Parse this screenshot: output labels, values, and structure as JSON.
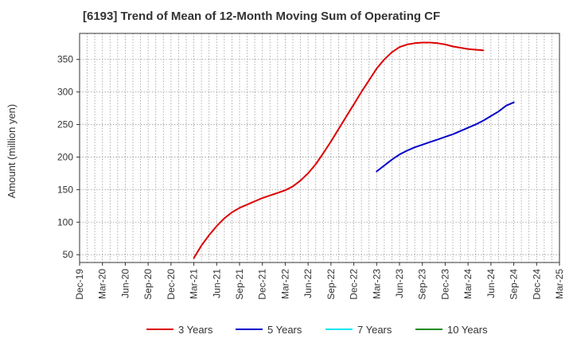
{
  "chart_data": {
    "type": "line",
    "title": "[6193]  Trend of Mean of 12-Month Moving Sum of Operating CF",
    "xlabel": "",
    "ylabel": "Amount (million yen)",
    "ylim": [
      38,
      390
    ],
    "yticks": [
      50,
      100,
      150,
      200,
      250,
      300,
      350
    ],
    "grid": true,
    "legend_position": "bottom",
    "x_tick_labels": [
      "Dec-19",
      "Mar-20",
      "Jun-20",
      "Sep-20",
      "Dec-20",
      "Mar-21",
      "Jun-21",
      "Sep-21",
      "Dec-21",
      "Mar-22",
      "Jun-22",
      "Sep-22",
      "Dec-22",
      "Mar-23",
      "Jun-23",
      "Sep-23",
      "Dec-23",
      "Mar-24",
      "Jun-24",
      "Sep-24",
      "Dec-24",
      "Mar-25"
    ],
    "series": [
      {
        "name": "3 Years",
        "color": "#dd0000",
        "start_index": 15,
        "values": [
          45,
          64,
          80,
          94,
          106,
          115,
          122,
          127,
          132,
          137,
          141,
          145,
          149,
          155,
          164,
          175,
          189,
          206,
          224,
          243,
          262,
          281,
          300,
          318,
          336,
          350,
          361,
          369,
          373,
          375,
          376,
          376,
          375,
          373,
          370,
          368,
          366,
          365,
          364
        ]
      },
      {
        "name": "5 Years",
        "color": "#0000cc",
        "start_index": 39,
        "values": [
          178,
          187,
          196,
          204,
          210,
          215,
          219,
          223,
          227,
          231,
          235,
          240,
          245,
          250,
          256,
          263,
          270,
          279,
          284
        ]
      },
      {
        "name": "7 Years",
        "color": "#00e5ee",
        "start_index": 0,
        "values": []
      },
      {
        "name": "10 Years",
        "color": "#228b22",
        "start_index": 0,
        "values": []
      }
    ]
  }
}
